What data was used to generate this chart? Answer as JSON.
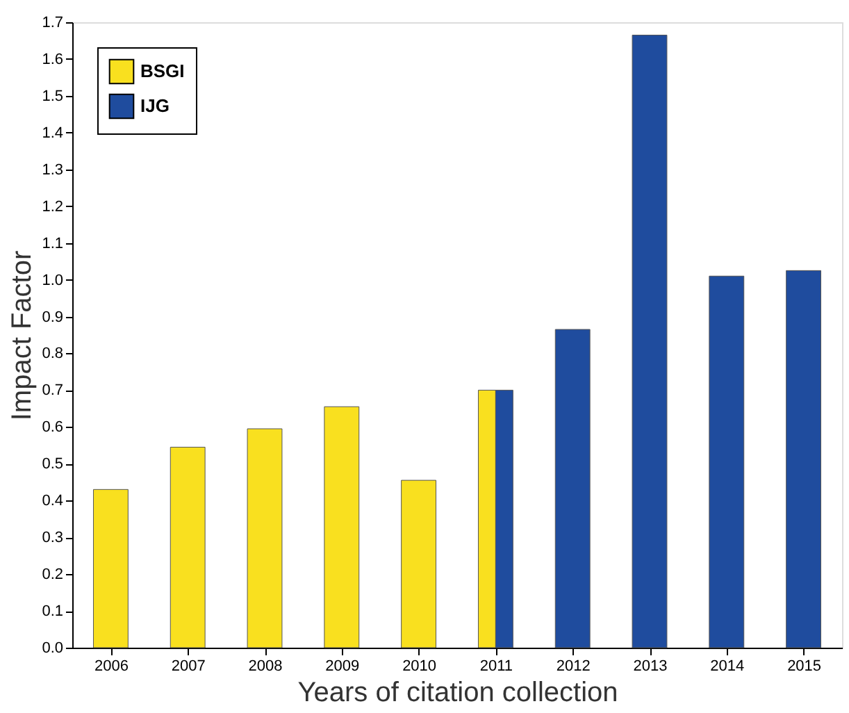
{
  "chart_data": {
    "type": "bar",
    "xlabel": "Years of citation collection",
    "ylabel": "Impact Factor",
    "categories": [
      "2006",
      "2007",
      "2008",
      "2009",
      "2010",
      "2011",
      "2012",
      "2013",
      "2014",
      "2015"
    ],
    "series": [
      {
        "name": "BSGI",
        "color": "#f9e01f",
        "values": [
          0.43,
          0.545,
          0.595,
          0.655,
          0.455,
          0.7,
          null,
          null,
          null,
          null
        ]
      },
      {
        "name": "IJG",
        "color": "#1f4c9e",
        "values": [
          null,
          null,
          null,
          null,
          null,
          0.7,
          0.865,
          1.665,
          1.01,
          1.025
        ]
      }
    ],
    "ylim": [
      0,
      1.7
    ],
    "yticks": [
      {
        "value": 0,
        "label": "0.0"
      },
      0.1,
      0.2,
      0.3,
      0.4,
      0.5,
      0.6,
      0.7,
      0.8,
      0.9,
      {
        "value": 1,
        "label": "1.0"
      },
      1.1,
      1.2,
      1.3,
      1.4,
      1.5,
      1.6,
      1.7
    ],
    "legend": "top left",
    "grid": false
  }
}
